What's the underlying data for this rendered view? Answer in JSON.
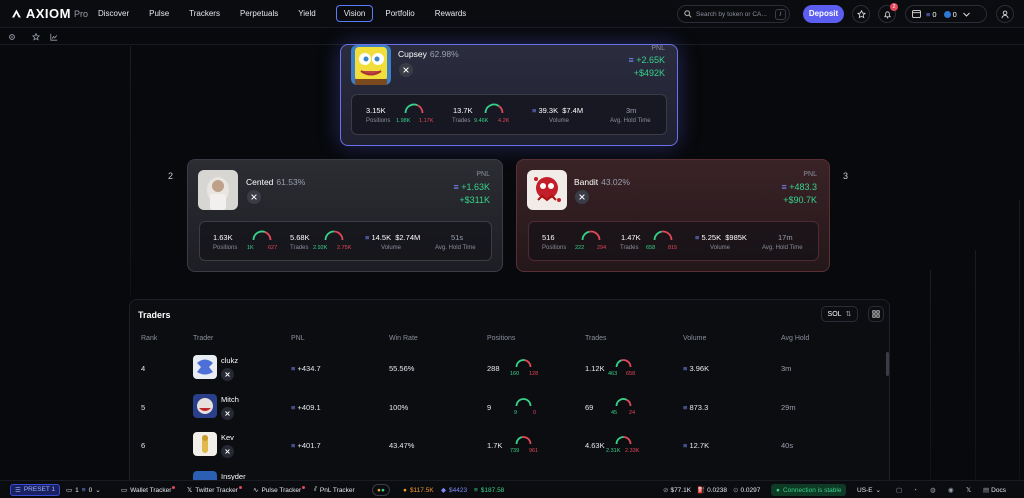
{
  "nav": {
    "brand": "AXIOM",
    "brand_suffix": "Pro",
    "links": [
      "Discover",
      "Pulse",
      "Trackers",
      "Perpetuals",
      "Yield",
      "Vision",
      "Portfolio",
      "Rewards"
    ],
    "active": "Vision",
    "search_placeholder": "Search by token or CA...",
    "search_shortcut": "/",
    "deposit_label": "Deposit",
    "notification_count": "2",
    "wallet_sol": "0",
    "wallet_usdc": "0",
    "wallet_icon": "wallet-icon"
  },
  "podium": {
    "first": {
      "name": "Cupsey",
      "win_rate": "62.98%",
      "pnl_label": "PNL",
      "pnl_sol": "+2.65K",
      "pnl_usd": "+$492K",
      "positions": "3.15K",
      "positions_win": "1.98K",
      "positions_loss": "1.17K",
      "positions_label": "Positions",
      "trades": "13.7K",
      "trades_win": "9.46K",
      "trades_loss": "4.2K",
      "trades_label": "Trades",
      "volume_sol": "39.3K",
      "volume_usd": "$7.4M",
      "volume_label": "Volume",
      "hold": "3m",
      "hold_label": "Avg. Hold Time",
      "positions_win_fraction": 0.63,
      "trades_win_fraction": 0.69
    },
    "second": {
      "rank": "2",
      "name": "Cented",
      "win_rate": "61.53%",
      "pnl_label": "PNL",
      "pnl_sol": "+1.63K",
      "pnl_usd": "+$311K",
      "positions": "1.63K",
      "positions_win": "1K",
      "positions_loss": "627",
      "positions_label": "Positions",
      "trades": "5.68K",
      "trades_win": "2.92K",
      "trades_loss": "2.75K",
      "trades_label": "Trades",
      "volume_sol": "14.5K",
      "volume_usd": "$2.74M",
      "volume_label": "Volume",
      "hold": "51s",
      "hold_label": "Avg. Hold Time",
      "positions_win_fraction": 0.61,
      "trades_win_fraction": 0.51
    },
    "third": {
      "rank": "3",
      "name": "Bandit",
      "win_rate": "43.02%",
      "pnl_label": "PNL",
      "pnl_sol": "+483.3",
      "pnl_usd": "+$90.7K",
      "positions": "516",
      "positions_win": "222",
      "positions_loss": "294",
      "positions_label": "Positions",
      "trades": "1.47K",
      "trades_win": "658",
      "trades_loss": "815",
      "trades_label": "Trades",
      "volume_sol": "5.25K",
      "volume_usd": "$985K",
      "volume_label": "Volume",
      "hold": "17m",
      "hold_label": "Avg. Hold Time",
      "positions_win_fraction": 0.43,
      "trades_win_fraction": 0.45
    }
  },
  "traders": {
    "title": "Traders",
    "currency_toggle": "SOL",
    "headers": [
      "Rank",
      "Trader",
      "PNL",
      "Win Rate",
      "Positions",
      "Trades",
      "Volume",
      "Avg Hold"
    ],
    "rows": [
      {
        "rank": "4",
        "name": "clukz",
        "pnl": "+434.7",
        "win_rate": "55.56%",
        "positions": "288",
        "pos_win": "160",
        "pos_loss": "128",
        "trades": "1.12K",
        "tr_win": "463",
        "tr_loss": "658",
        "volume": "3.96K",
        "hold": "3m",
        "pos_frac": 0.56,
        "tr_frac": 0.41
      },
      {
        "rank": "5",
        "name": "Mitch",
        "pnl": "+409.1",
        "win_rate": "100%",
        "positions": "9",
        "pos_win": "9",
        "pos_loss": "0",
        "trades": "69",
        "tr_win": "45",
        "tr_loss": "24",
        "volume": "873.3",
        "hold": "29m",
        "pos_frac": 1.0,
        "tr_frac": 0.65
      },
      {
        "rank": "6",
        "name": "Kev",
        "pnl": "+401.7",
        "win_rate": "43.47%",
        "positions": "1.7K",
        "pos_win": "739",
        "pos_loss": "961",
        "trades": "4.63K",
        "tr_win": "2.31K",
        "tr_loss": "2.33K",
        "volume": "12.7K",
        "hold": "40s",
        "pos_frac": 0.43,
        "tr_frac": 0.5
      },
      {
        "rank": "",
        "name": "Insyder",
        "pnl": "",
        "win_rate": "",
        "positions": "",
        "pos_win": "",
        "pos_loss": "",
        "trades": "",
        "tr_win": "",
        "tr_loss": "",
        "volume": "",
        "hold": "",
        "pos_frac": 0.5,
        "tr_frac": 0.5
      }
    ]
  },
  "bottom": {
    "preset": "PRESET 1",
    "wallets": "1",
    "wallet_balance": "0",
    "wallet_tracker": "Wallet Tracker",
    "twitter_tracker": "Twitter Tracker",
    "pulse_tracker": "Pulse Tracker",
    "pnl_tracker": "PnL Tracker",
    "btc": "$117.5K",
    "eth": "$4423",
    "sol": "$187.58",
    "mcap": "$77.1K",
    "fee1": "0.0238",
    "fee2": "0.0297",
    "status": "Connection is stable",
    "region": "US-E",
    "docs": "Docs"
  },
  "colors": {
    "accent": "#5b5ef0",
    "positive": "#37d28a",
    "negative": "#e2475a",
    "first_border": "#6a70e8"
  }
}
